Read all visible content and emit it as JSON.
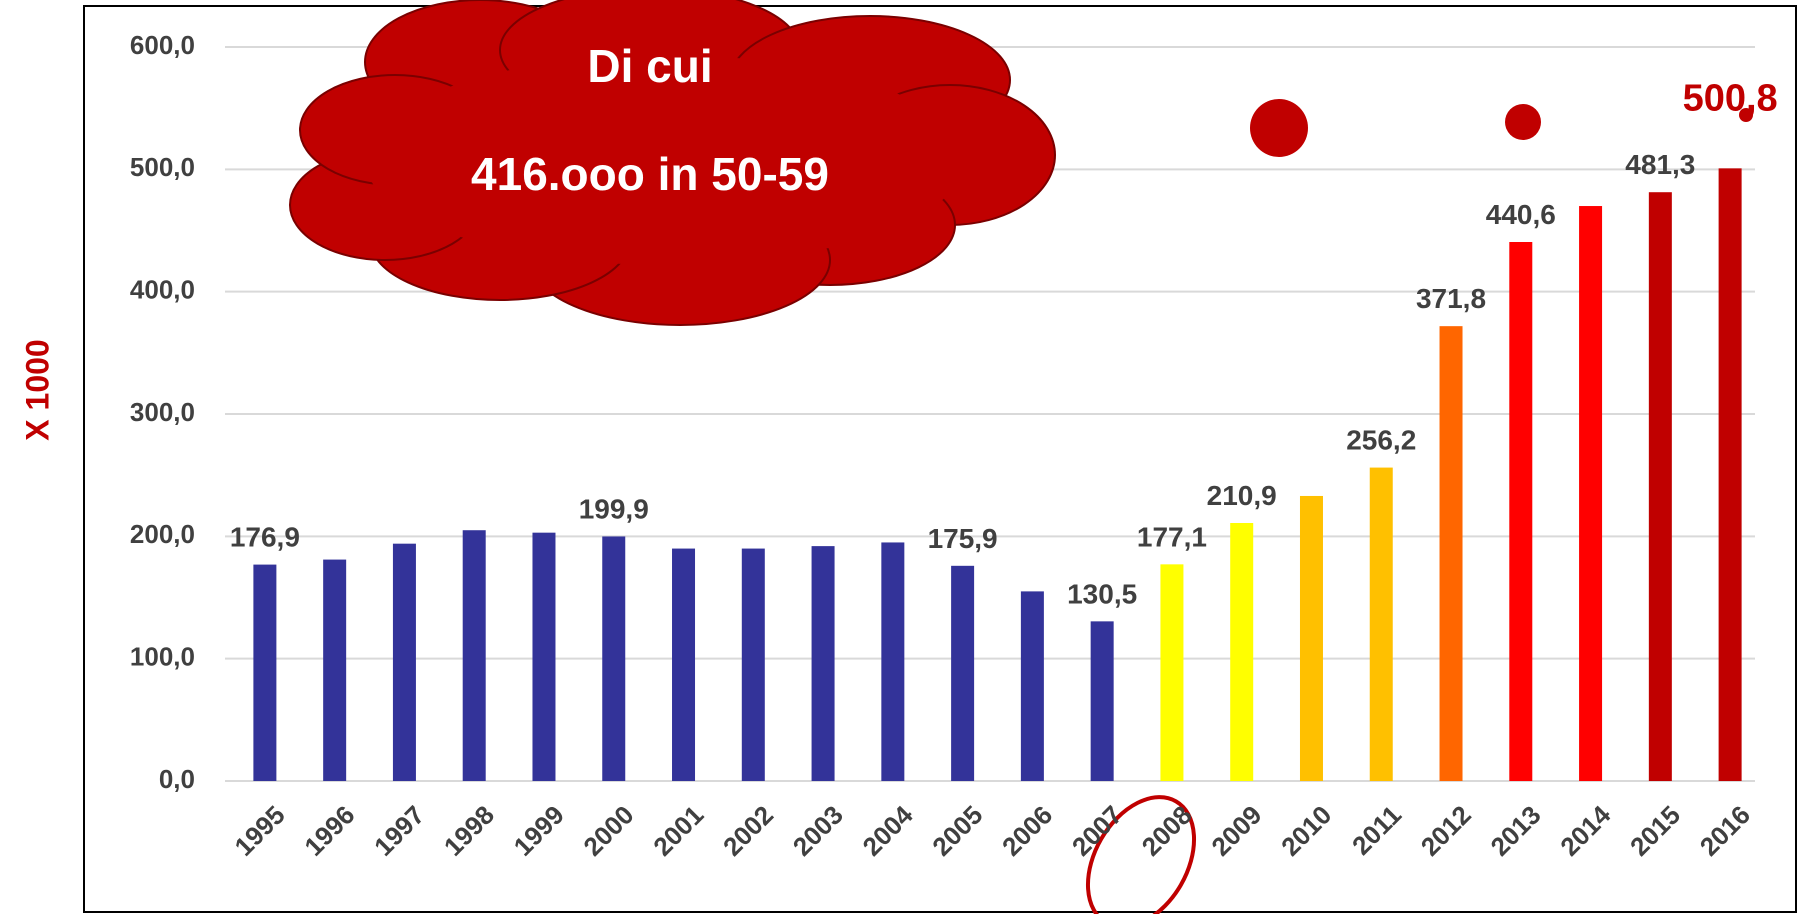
{
  "chart_data": {
    "type": "bar",
    "y_axis_label": "X 1000",
    "annotation": [
      "Di cui",
      "416.ooo in 50-59"
    ],
    "categories": [
      "1995",
      "1996",
      "1997",
      "1998",
      "1999",
      "2000",
      "2001",
      "2002",
      "2003",
      "2004",
      "2005",
      "2006",
      "2007",
      "2008",
      "2009",
      "2010",
      "2011",
      "2012",
      "2013",
      "2014",
      "2015",
      "2016"
    ],
    "values": [
      176.9,
      181,
      194,
      205,
      203,
      199.9,
      190,
      190,
      192,
      195,
      175.9,
      155,
      130.5,
      177.1,
      210.9,
      233,
      256.2,
      371.8,
      440.6,
      470,
      481.3,
      500.8
    ],
    "value_labels": [
      "176,9",
      null,
      null,
      null,
      null,
      "199,9",
      null,
      null,
      null,
      null,
      "175,9",
      null,
      "130,5",
      "177,1",
      "210,9",
      null,
      "256,2",
      "371,8",
      "440,6",
      null,
      "481,3",
      "500,8"
    ],
    "colors": [
      "#333399",
      "#333399",
      "#333399",
      "#333399",
      "#333399",
      "#333399",
      "#333399",
      "#333399",
      "#333399",
      "#333399",
      "#333399",
      "#333399",
      "#333399",
      "#ffff00",
      "#ffff00",
      "#ffc000",
      "#ffc000",
      "#ff6600",
      "#ff0000",
      "#ff0000",
      "#c00000",
      "#c00000"
    ],
    "ylim": [
      0,
      600
    ],
    "yticks": [
      {
        "value": 0,
        "label": "0,0"
      },
      {
        "value": 100,
        "label": "100,0"
      },
      {
        "value": 200,
        "label": "200,0"
      },
      {
        "value": 300,
        "label": "300,0"
      },
      {
        "value": 400,
        "label": "400,0"
      },
      {
        "value": 500,
        "label": "500,0"
      },
      {
        "value": 600,
        "label": "600,0"
      }
    ],
    "grid": true
  }
}
